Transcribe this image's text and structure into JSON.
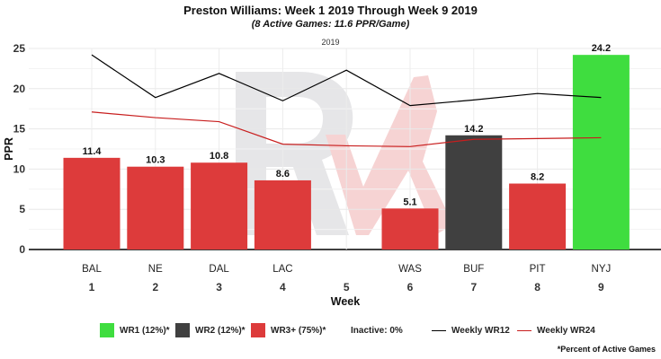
{
  "title": "Preston Williams: Week 1 2019 Through Week 9 2019",
  "subtitle": "(8 Active Games: 11.6 PPR/Game)",
  "season_label": "2019",
  "footnote": "*Percent of Active Games",
  "colors": {
    "wr1": "#3fdd3f",
    "wr2": "#404040",
    "wr3": "#dd3b3b",
    "wr12_line": "#000000",
    "wr24_line": "#c81e1e",
    "watermark_gray": "#e6e6e8",
    "watermark_red": "#f6d3d3"
  },
  "legend": {
    "wr1": "WR1 (12%)*",
    "wr2": "WR2 (12%)*",
    "wr3": "WR3+ (75%)*",
    "inactive": "Inactive: 0%",
    "wr12": "Weekly WR12",
    "wr24": "Weekly WR24"
  },
  "chart_data": {
    "type": "bar",
    "xlabel": "Week",
    "ylabel": "PPR",
    "ylim": [
      0,
      25
    ],
    "yticks": [
      0,
      5,
      10,
      15,
      20,
      25
    ],
    "grid": true,
    "legend_position": "bottom",
    "weeks": [
      1,
      2,
      3,
      4,
      5,
      6,
      7,
      8,
      9
    ],
    "opponents": [
      "BAL",
      "NE",
      "DAL",
      "LAC",
      "",
      "WAS",
      "BUF",
      "PIT",
      "NYJ"
    ],
    "bars": [
      {
        "week": 1,
        "value": 11.4,
        "tier": "wr3",
        "label": "11.4"
      },
      {
        "week": 2,
        "value": 10.3,
        "tier": "wr3",
        "label": "10.3"
      },
      {
        "week": 3,
        "value": 10.8,
        "tier": "wr3",
        "label": "10.8"
      },
      {
        "week": 4,
        "value": 8.6,
        "tier": "wr3",
        "label": "8.6"
      },
      {
        "week": 6,
        "value": 5.1,
        "tier": "wr3",
        "label": "5.1"
      },
      {
        "week": 7,
        "value": 14.2,
        "tier": "wr2",
        "label": "14.2"
      },
      {
        "week": 8,
        "value": 8.2,
        "tier": "wr3",
        "label": "8.2"
      },
      {
        "week": 9,
        "value": 24.2,
        "tier": "wr1",
        "label": "24.2"
      }
    ],
    "series": [
      {
        "name": "Weekly WR12",
        "values": [
          24.2,
          18.9,
          21.9,
          18.5,
          22.3,
          17.9,
          18.6,
          19.4,
          18.9
        ]
      },
      {
        "name": "Weekly WR24",
        "values": [
          17.1,
          16.4,
          15.9,
          13.1,
          12.9,
          12.8,
          13.7,
          13.8,
          13.9
        ]
      }
    ]
  }
}
